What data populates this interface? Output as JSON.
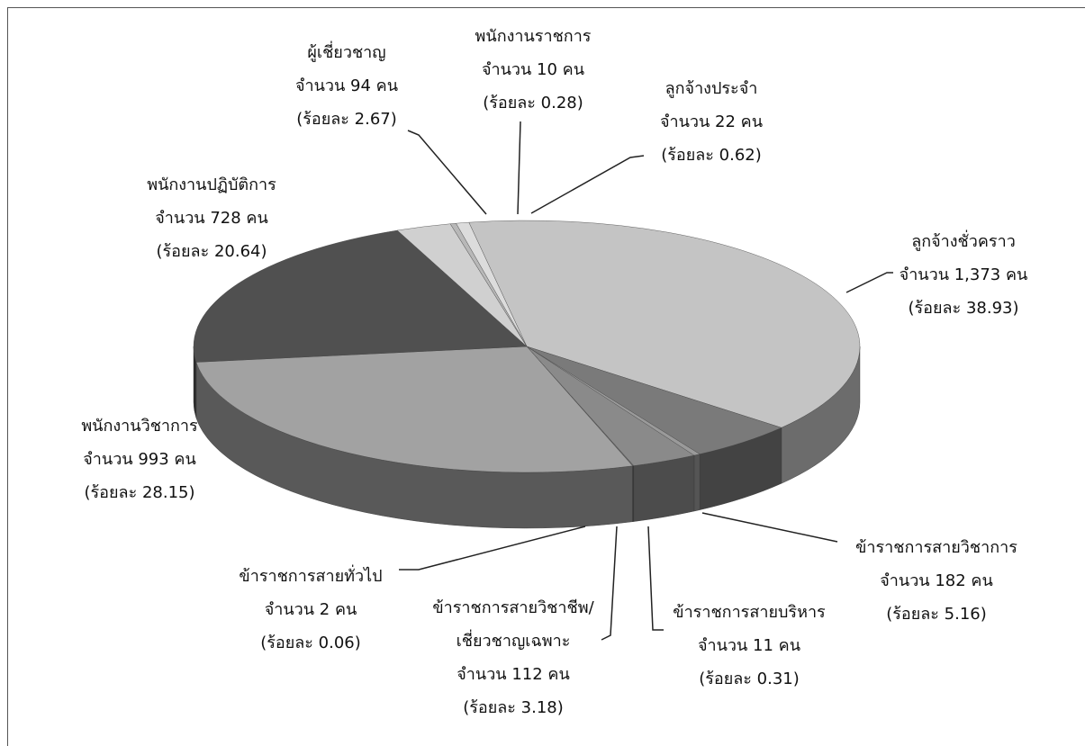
{
  "chart_data": {
    "type": "pie3d",
    "categories": [
      "ลูกจ้างชั่วคราว",
      "ข้าราชการสายวิชาการ",
      "ข้าราชการสายบริหาร",
      "ข้าราชการสายวิชาชีพ/\nเชี่ยวชาญเฉพาะ",
      "ข้าราชการสายทั่วไป",
      "พนักงานวิชาการ",
      "พนักงานปฏิบัติการ",
      "ผู้เชี่ยวชาญ",
      "พนักงานราชการ",
      "ลูกจ้างประจำ"
    ],
    "values": [
      1373,
      182,
      11,
      112,
      2,
      993,
      728,
      94,
      10,
      22
    ],
    "value_labels": [
      "จำนวน 1,373 คน",
      "จำนวน 182 คน",
      "จำนวน 11 คน",
      "จำนวน 112 คน",
      "จำนวน 2 คน",
      "จำนวน 993 คน",
      "จำนวน 728 คน",
      "จำนวน 94 คน",
      "จำนวน 10  คน",
      "จำนวน 22 คน"
    ],
    "percents": [
      38.93,
      5.16,
      0.31,
      3.18,
      0.06,
      28.15,
      20.64,
      2.67,
      0.28,
      0.62
    ],
    "percent_labels": [
      "(ร้อยละ 38.93)",
      "(ร้อยละ 5.16)",
      "(ร้อยละ 0.31)",
      "(ร้อยละ 3.18)",
      "(ร้อยละ 0.06)",
      "(ร้อยละ 28.15)",
      "(ร้อยละ 20.64)",
      "(ร้อยละ 2.67)",
      "(ร้อยละ 0.28)",
      "(ร้อยละ 0.62)"
    ],
    "colors": [
      "#c4c4c4",
      "#7a7a7a",
      "#9a9a9a",
      "#8a8a8a",
      "#6a6a6a",
      "#a2a2a2",
      "#505050",
      "#d0d0d0",
      "#b8b8b8",
      "#dcdcdc"
    ]
  }
}
